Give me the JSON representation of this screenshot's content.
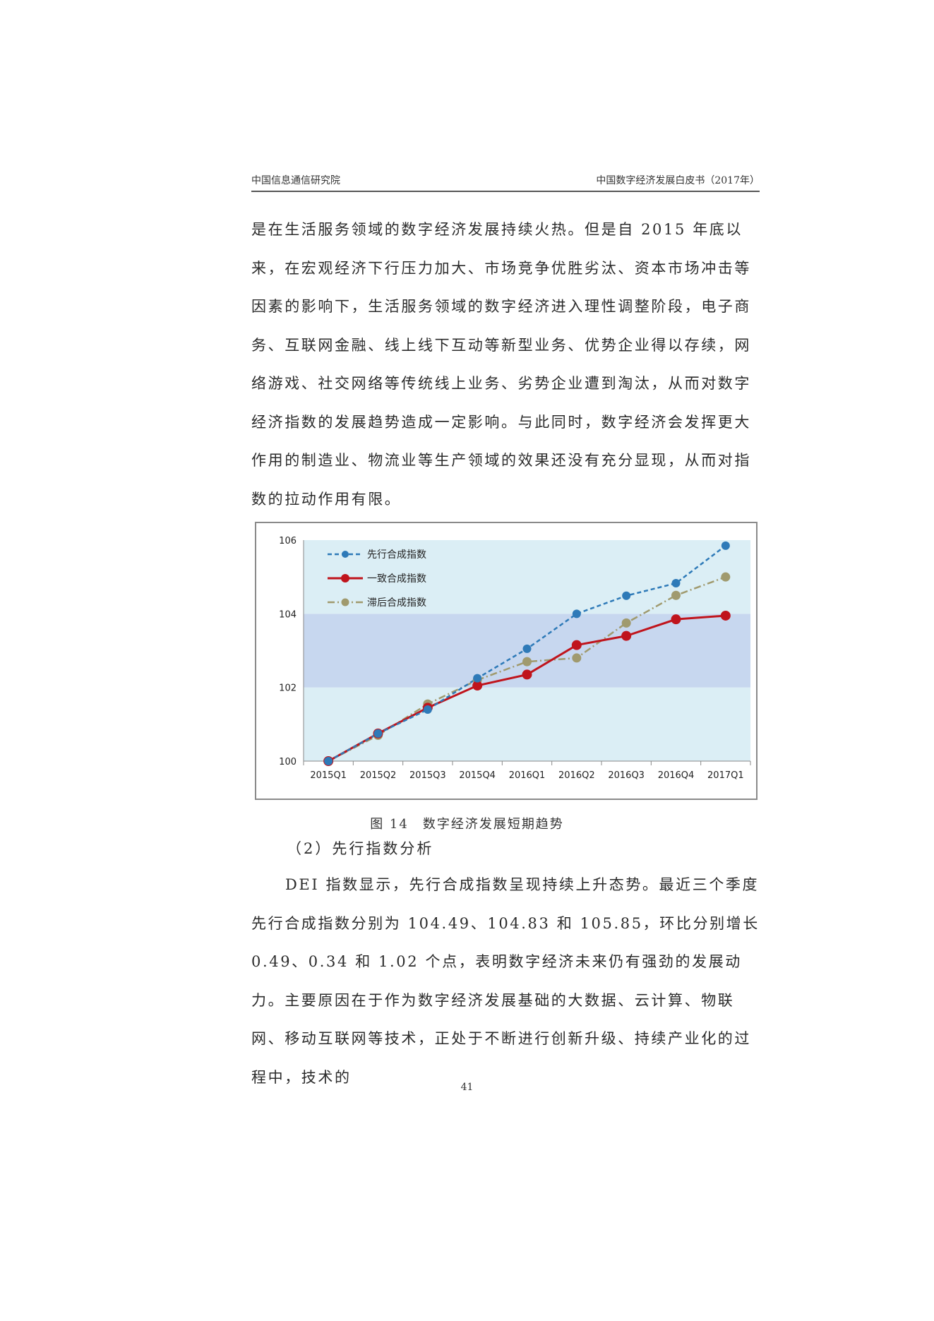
{
  "header": {
    "left": "中国信息通信研究院",
    "right": "中国数字经济发展白皮书（2017年）"
  },
  "paragraph1": "是在生活服务领域的数字经济发展持续火热。但是自 2015 年底以来，在宏观经济下行压力加大、市场竞争优胜劣汰、资本市场冲击等因素的影响下，生活服务领域的数字经济进入理性调整阶段，电子商务、互联网金融、线上线下互动等新型业务、优势企业得以存续，网络游戏、社交网络等传统线上业务、劣势企业遭到淘汰，从而对数字经济指数的发展趋势造成一定影响。与此同时，数字经济会发挥更大作用的制造业、物流业等生产领域的效果还没有充分显现，从而对指数的拉动作用有限。",
  "figure_caption": "图 14　数字经济发展短期趋势",
  "subheading": "（2）先行指数分析",
  "paragraph2": "DEI 指数显示，先行合成指数呈现持续上升态势。最近三个季度先行合成指数分别为 104.49、104.83 和 105.85，环比分别增长 0.49、0.34 和 1.02 个点，表明数字经济未来仍有强劲的发展动力。主要原因在于作为数字经济发展基础的大数据、云计算、物联网、移动互联网等技术，正处于不断进行创新升级、持续产业化的过程中，技术的",
  "page_number": "41",
  "chart_data": {
    "type": "line",
    "categories": [
      "2015Q1",
      "2015Q2",
      "2015Q3",
      "2015Q4",
      "2016Q1",
      "2016Q2",
      "2016Q3",
      "2016Q4",
      "2017Q1"
    ],
    "ylim": [
      100,
      106
    ],
    "yticks": [
      "100",
      "102",
      "104",
      "106"
    ],
    "legend_position": "top-left",
    "bands": [
      {
        "from": 100,
        "to": 102,
        "color": "#dbeef5"
      },
      {
        "from": 102,
        "to": 104,
        "color": "#c7d7ef"
      },
      {
        "from": 104,
        "to": 106,
        "color": "#dbeef5"
      }
    ],
    "series": [
      {
        "name": "先行合成指数",
        "color": "#2e7ab8",
        "style": "dashed",
        "values": [
          100.0,
          100.75,
          101.4,
          102.25,
          103.05,
          104.0,
          104.49,
          104.83,
          105.85
        ]
      },
      {
        "name": "一致合成指数",
        "color": "#c0141c",
        "style": "solid",
        "values": [
          100.0,
          100.75,
          101.45,
          102.05,
          102.35,
          103.15,
          103.4,
          103.85,
          103.95
        ]
      },
      {
        "name": "滞后合成指数",
        "color": "#a09a6e",
        "style": "dashdot",
        "values": [
          100.0,
          100.7,
          101.55,
          102.2,
          102.7,
          102.8,
          103.75,
          104.5,
          105.0
        ]
      }
    ]
  }
}
